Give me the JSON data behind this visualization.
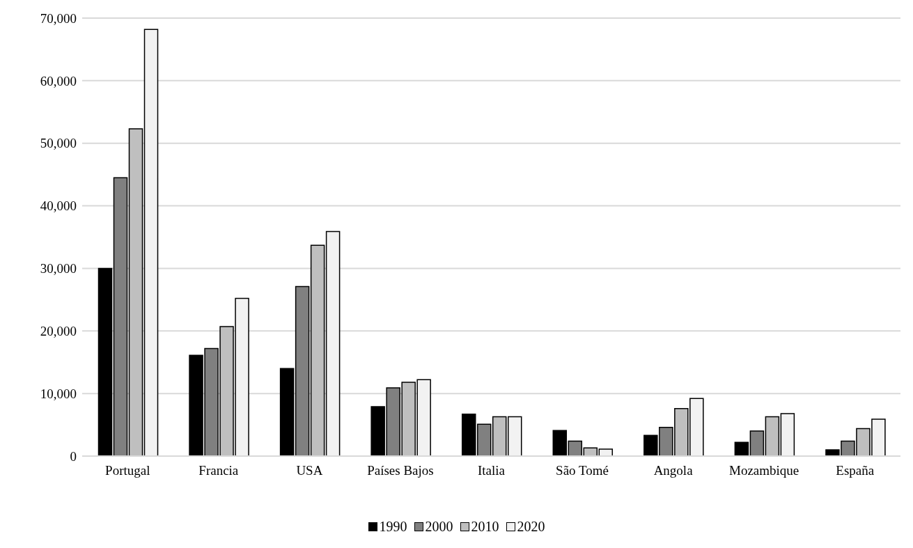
{
  "chart_data": {
    "type": "bar",
    "categories": [
      "Portugal",
      "Francia",
      "USA",
      "Países Bajos",
      "Italia",
      "São Tomé",
      "Angola",
      "Mozambique",
      "España"
    ],
    "series": [
      {
        "name": "1990",
        "color": "#000000",
        "values": [
          30000,
          16100,
          14000,
          7900,
          6700,
          4100,
          3300,
          2200,
          1000
        ]
      },
      {
        "name": "2000",
        "color": "#808080",
        "values": [
          44500,
          17200,
          27100,
          10900,
          5100,
          2400,
          4600,
          4000,
          2400
        ]
      },
      {
        "name": "2010",
        "color": "#bfbfbf",
        "values": [
          52300,
          20700,
          33700,
          11800,
          6300,
          1300,
          7600,
          6300,
          4400
        ]
      },
      {
        "name": "2020",
        "color": "#f2f2f2",
        "values": [
          68200,
          25200,
          35900,
          12200,
          6300,
          1100,
          9200,
          6800,
          5900
        ]
      }
    ],
    "ylim": [
      0,
      70000
    ],
    "yticks": [
      {
        "value": 0,
        "label": "0"
      },
      {
        "value": 10000,
        "label": "10,000"
      },
      {
        "value": 20000,
        "label": "20,000"
      },
      {
        "value": 30000,
        "label": "30,000"
      },
      {
        "value": 40000,
        "label": "40,000"
      },
      {
        "value": 50000,
        "label": "50,000"
      },
      {
        "value": 60000,
        "label": "60,000"
      },
      {
        "value": 70000,
        "label": "70,000"
      }
    ],
    "grid": "y",
    "legend": "bottom"
  }
}
